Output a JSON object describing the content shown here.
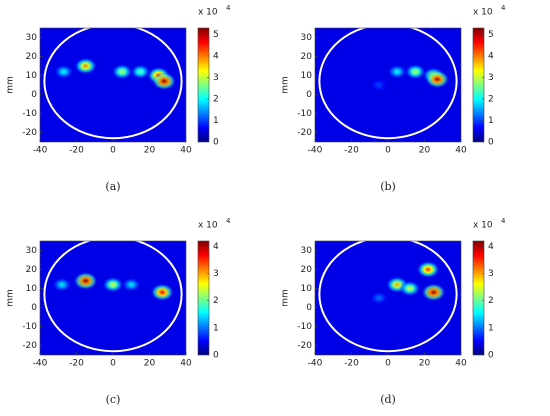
{
  "chart_data": [
    {
      "type": "heatmap",
      "label": "(a)",
      "ylabel": "mm",
      "colorbar_label": "x 10",
      "colorbar_exponent": "4",
      "xlim": [
        -40,
        40
      ],
      "xticks": [
        -40,
        -20,
        0,
        20,
        40
      ],
      "ylim": [
        -25,
        35
      ],
      "yticks": [
        -20,
        -10,
        0,
        10,
        20,
        30
      ],
      "clim": [
        0,
        5.3
      ],
      "cticks": [
        0,
        1,
        2,
        3,
        4,
        5
      ],
      "hotspots": {
        "x": [
          -15,
          -27,
          5,
          15,
          25,
          28
        ],
        "y": [
          15,
          12,
          12,
          12,
          10,
          7
        ],
        "values": [
          4,
          2,
          3,
          2.5,
          4.5,
          5.3
        ]
      }
    },
    {
      "type": "heatmap",
      "label": "(b)",
      "ylabel": "mm",
      "colorbar_label": "x 10",
      "colorbar_exponent": "4",
      "xlim": [
        -40,
        40
      ],
      "xticks": [
        -40,
        -20,
        0,
        20,
        40
      ],
      "ylim": [
        -25,
        35
      ],
      "yticks": [
        -20,
        -10,
        0,
        10,
        20,
        30
      ],
      "clim": [
        0,
        5.3
      ],
      "cticks": [
        0,
        1,
        2,
        3,
        4,
        5
      ],
      "hotspots": {
        "x": [
          -5,
          5,
          15,
          25,
          27
        ],
        "y": [
          5,
          12,
          12,
          10,
          8
        ],
        "values": [
          1,
          2,
          3,
          3.5,
          5.2
        ]
      }
    },
    {
      "type": "heatmap",
      "label": "(c)",
      "ylabel": "mm",
      "colorbar_label": "x 10",
      "colorbar_exponent": "4",
      "xlim": [
        -40,
        40
      ],
      "xticks": [
        -40,
        -20,
        0,
        20,
        40
      ],
      "ylim": [
        -25,
        35
      ],
      "yticks": [
        -20,
        -10,
        0,
        10,
        20,
        30
      ],
      "clim": [
        0,
        4.2
      ],
      "cticks": [
        0,
        1,
        2,
        3,
        4
      ],
      "hotspots": {
        "x": [
          -28,
          -15,
          0,
          10,
          27
        ],
        "y": [
          12,
          14,
          12,
          12,
          8
        ],
        "values": [
          1.5,
          4.2,
          2.5,
          1.5,
          3.8
        ]
      }
    },
    {
      "type": "heatmap",
      "label": "(d)",
      "ylabel": "mm",
      "colorbar_label": "x 10",
      "colorbar_exponent": "4",
      "xlim": [
        -40,
        40
      ],
      "xticks": [
        -40,
        -20,
        0,
        20,
        40
      ],
      "ylim": [
        -25,
        35
      ],
      "yticks": [
        -20,
        -10,
        0,
        10,
        20,
        30
      ],
      "clim": [
        0,
        4.2
      ],
      "cticks": [
        0,
        1,
        2,
        3,
        4
      ],
      "hotspots": {
        "x": [
          -5,
          5,
          12,
          22,
          25
        ],
        "y": [
          5,
          12,
          10,
          20,
          8
        ],
        "values": [
          1,
          3,
          2.5,
          3.5,
          4.2
        ]
      }
    }
  ]
}
